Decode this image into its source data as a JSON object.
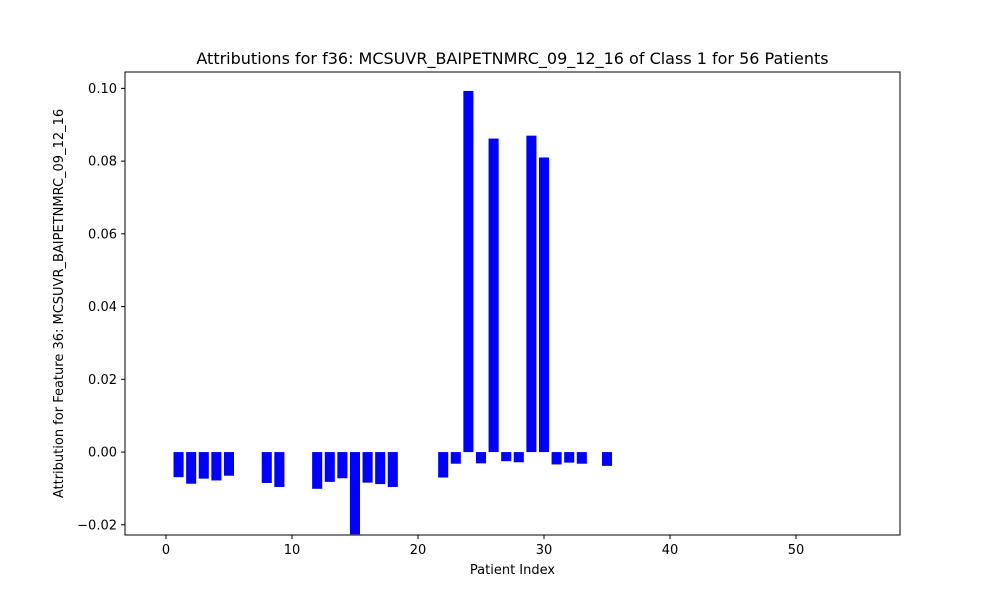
{
  "chart_data": {
    "type": "bar",
    "title": "Attributions for f36: MCSUVR_BAIPETNMRC_09_12_16 of Class 1 for 56 Patients",
    "xlabel": "Patient Index",
    "ylabel": "Attribution for Feature 36: MCSUVR_BAIPETNMRC_09_12_16",
    "xlim": [
      -3.25,
      58.25
    ],
    "ylim": [
      -0.0228,
      0.1045
    ],
    "xticks": [
      0,
      10,
      20,
      30,
      40,
      50
    ],
    "yticks": [
      -0.02,
      0.0,
      0.02,
      0.04,
      0.06,
      0.08,
      0.1
    ],
    "ytick_labels": [
      "−0.02",
      "0.00",
      "0.02",
      "0.04",
      "0.06",
      "0.08",
      "0.10"
    ],
    "bar_width": 0.8,
    "bar_color": "#0000ff",
    "grid": false,
    "legend": "none",
    "x": [
      1,
      2,
      3,
      4,
      5,
      8,
      9,
      12,
      13,
      14,
      15,
      16,
      17,
      18,
      22,
      23,
      24,
      25,
      26,
      27,
      28,
      29,
      30,
      31,
      32,
      33,
      35
    ],
    "values": [
      -0.0069,
      -0.0087,
      -0.0073,
      -0.0078,
      -0.0065,
      -0.0085,
      -0.0096,
      -0.0101,
      -0.0082,
      -0.0072,
      -0.0226,
      -0.0084,
      -0.0088,
      -0.0096,
      -0.007,
      -0.0032,
      0.0993,
      -0.0031,
      0.0862,
      -0.0025,
      -0.0028,
      0.087,
      0.081,
      -0.0034,
      -0.0029,
      -0.0032,
      -0.0038
    ]
  }
}
